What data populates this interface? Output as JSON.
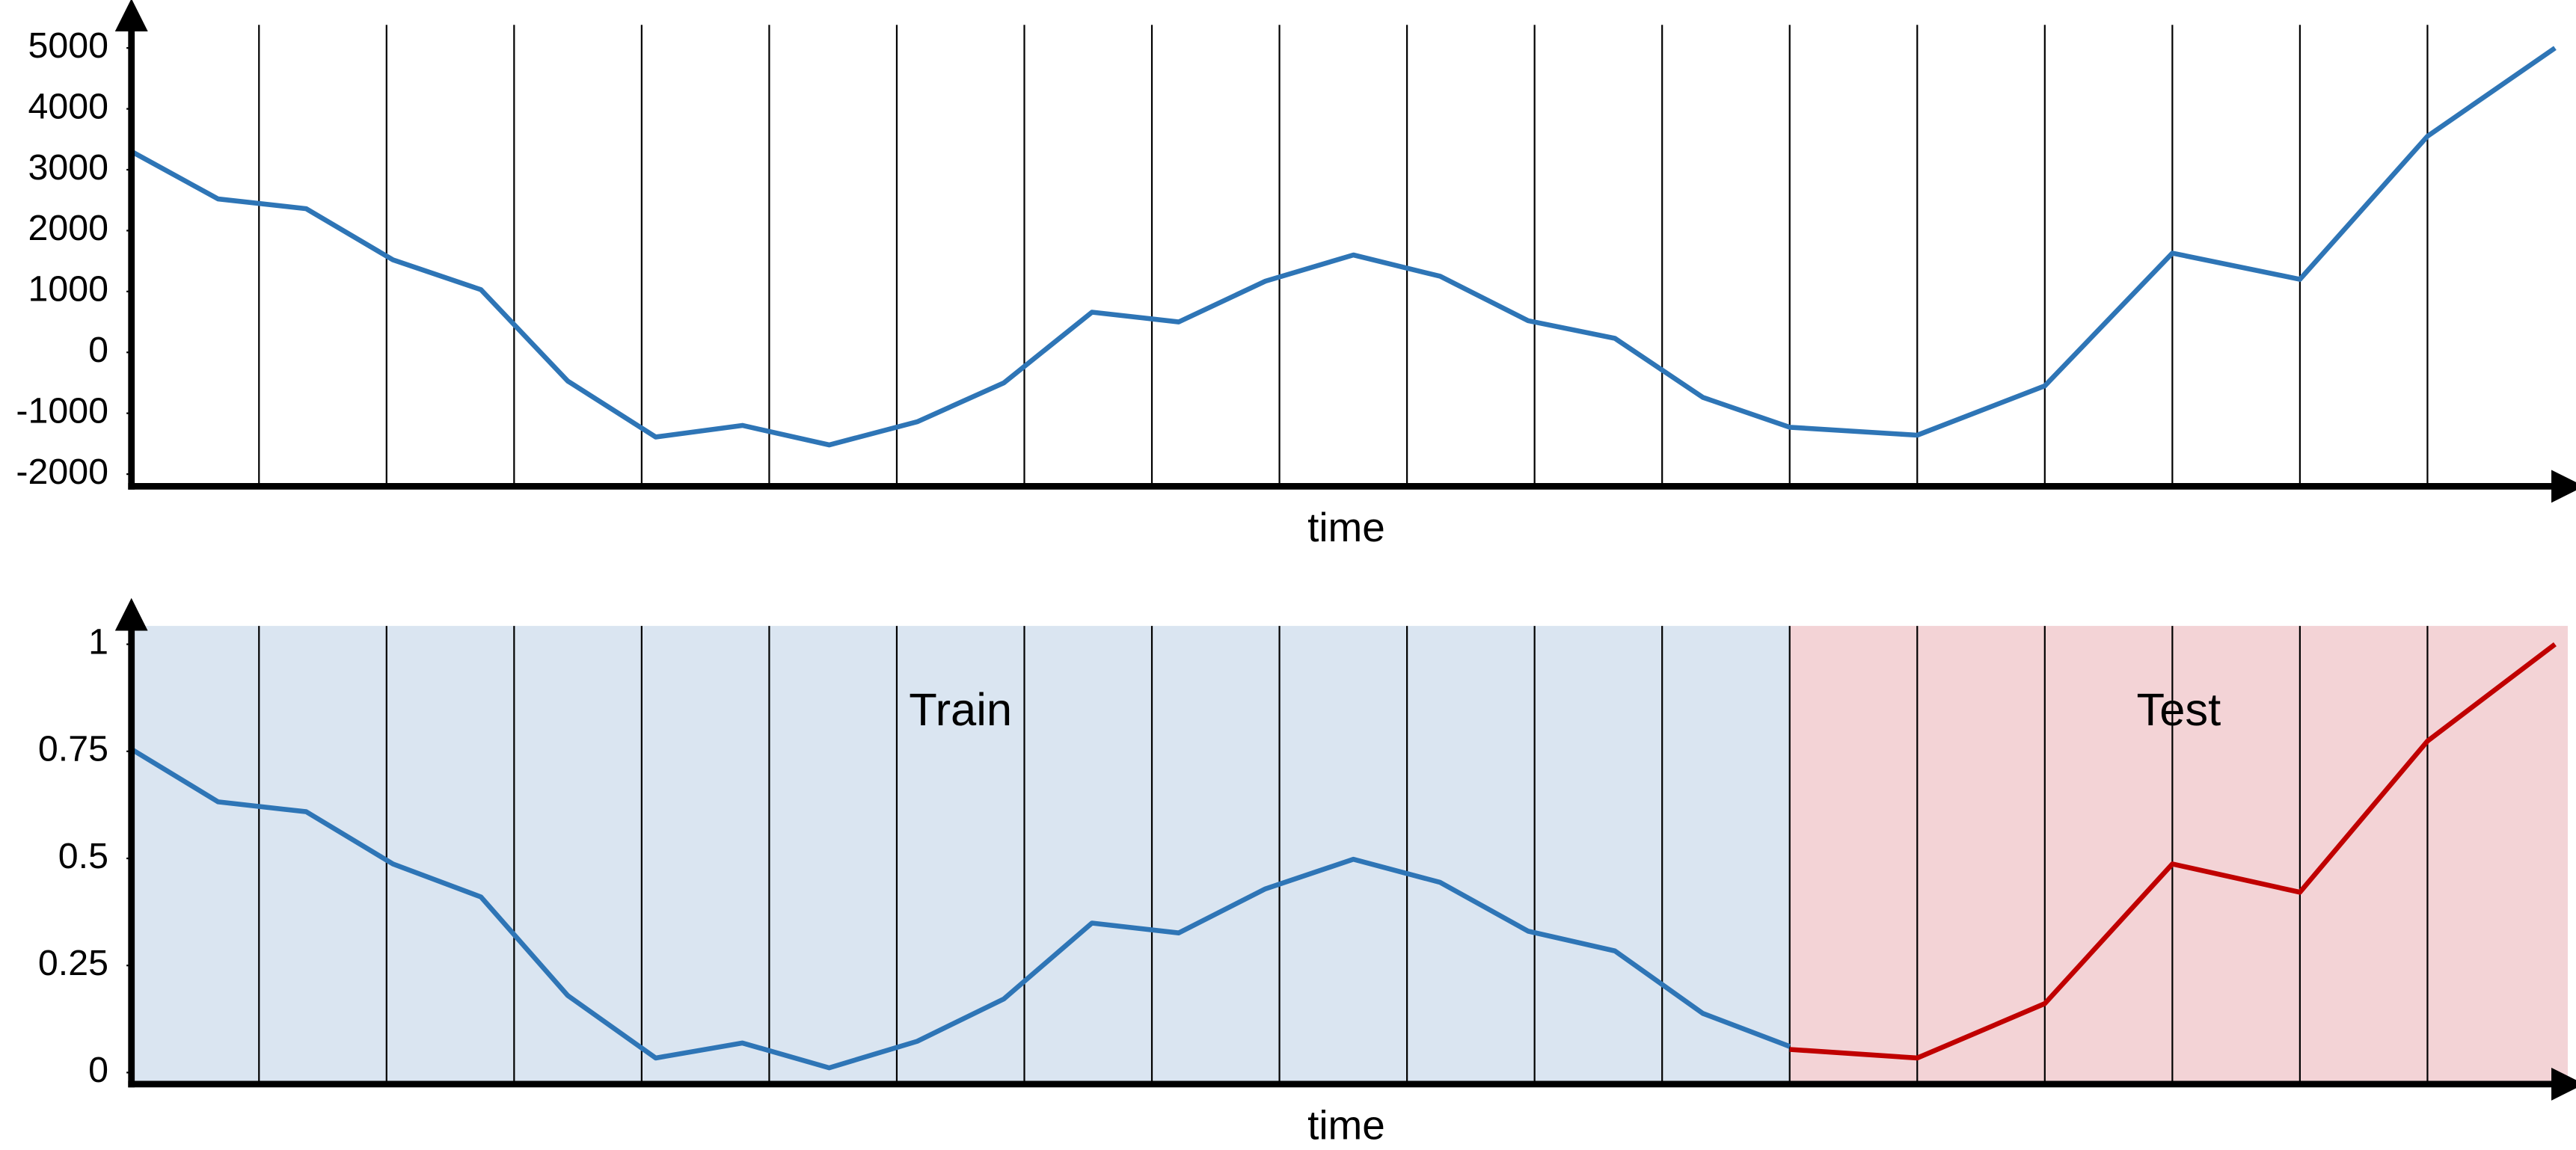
{
  "chart_data": [
    {
      "type": "line",
      "xlabel": "time",
      "xlim": [
        0,
        19.1
      ],
      "ylim": [
        -2200,
        5650
      ],
      "xticks": [
        1,
        2,
        3,
        4,
        5,
        6,
        7,
        8,
        9,
        10,
        11,
        12,
        13,
        14,
        15,
        16,
        17,
        18
      ],
      "yticks": [
        -2000,
        -1000,
        0,
        1000,
        2000,
        3000,
        4000,
        5000
      ],
      "grid": true,
      "series": [
        {
          "color": "#2e75b6",
          "x": [
            0,
            0.68,
            1.37,
            2.05,
            2.74,
            3.42,
            4.11,
            4.79,
            5.47,
            6.16,
            6.84,
            7.53,
            8.21,
            8.89,
            9.58,
            10.26,
            10.95,
            11.63,
            12.32,
            13,
            14,
            15,
            16,
            17,
            18,
            19
          ],
          "values": [
            3300,
            2520,
            2360,
            1520,
            1030,
            -470,
            -1390,
            -1200,
            -1520,
            -1140,
            -500,
            660,
            500,
            1170,
            1600,
            1250,
            520,
            230,
            -740,
            -1230,
            -1360,
            -550,
            1630,
            1200,
            3550,
            5000
          ]
        }
      ]
    },
    {
      "type": "line",
      "xlabel": "time",
      "xlim": [
        0,
        19.1
      ],
      "ylim": [
        -0.027,
        1.085
      ],
      "xticks": [
        1,
        2,
        3,
        4,
        5,
        6,
        7,
        8,
        9,
        10,
        11,
        12,
        13,
        14,
        15,
        16,
        17,
        18
      ],
      "yticks": [
        0,
        0.25,
        0.5,
        0.75,
        1
      ],
      "grid": true,
      "regions": [
        {
          "label": "Train",
          "xlim": [
            0,
            13
          ],
          "color": "#dae5f1"
        },
        {
          "label": "Test",
          "xlim": [
            13,
            19.1
          ],
          "color": "#f3d3d6"
        }
      ],
      "series": [
        {
          "color": "#2e75b6",
          "x": [
            0,
            0.68,
            1.37,
            2.05,
            2.74,
            3.42,
            4.11,
            4.79,
            5.47,
            6.16,
            6.84,
            7.53,
            8.21,
            8.89,
            9.58,
            10.26,
            10.95,
            11.63,
            12.32,
            13
          ],
          "values": [
            0.755,
            0.632,
            0.609,
            0.487,
            0.41,
            0.18,
            0.034,
            0.069,
            0.011,
            0.073,
            0.172,
            0.349,
            0.326,
            0.429,
            0.498,
            0.444,
            0.33,
            0.284,
            0.138,
            0.061
          ]
        },
        {
          "color": "#c00000",
          "x": [
            13,
            14,
            15,
            16,
            17,
            18,
            19
          ],
          "values": [
            0.054,
            0.034,
            0.161,
            0.487,
            0.421,
            0.774,
            1
          ]
        }
      ]
    }
  ]
}
